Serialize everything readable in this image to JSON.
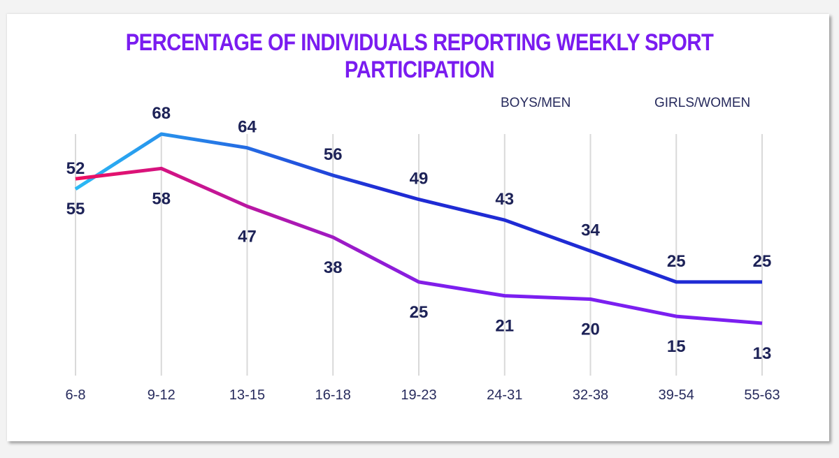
{
  "chart_data": {
    "type": "line",
    "title": "PERCENTAGE OF INDIVIDUALS REPORTING WEEKLY SPORT PARTICIPATION",
    "categories": [
      "6-8",
      "9-12",
      "13-15",
      "16-18",
      "19-23",
      "24-31",
      "32-38",
      "39-54",
      "55-63"
    ],
    "series": [
      {
        "name": "BOYS/MEN",
        "values": [
          52,
          68,
          64,
          56,
          49,
          43,
          34,
          25,
          25
        ],
        "labels": [
          "52",
          "68",
          "64",
          "56",
          "49",
          "43",
          "34",
          "25",
          "25"
        ],
        "gradient": [
          "#2bbaf5",
          "#1f2bd4"
        ]
      },
      {
        "name": "GIRLS/WOMEN",
        "values": [
          55,
          58,
          47,
          38,
          25,
          21,
          20,
          15,
          13
        ],
        "labels": [
          "55",
          "58",
          "47",
          "38",
          "25",
          "21",
          "20",
          "15",
          "13"
        ],
        "gradient": [
          "#ee1060",
          "#7b1ff0"
        ]
      }
    ],
    "ylim": [
      0,
      80
    ],
    "grid": "vertical",
    "legend_position": "top-right"
  },
  "colors": {
    "title": "#7a1cf0",
    "text": "#1d2257",
    "gridline": "#d9d9d9"
  }
}
